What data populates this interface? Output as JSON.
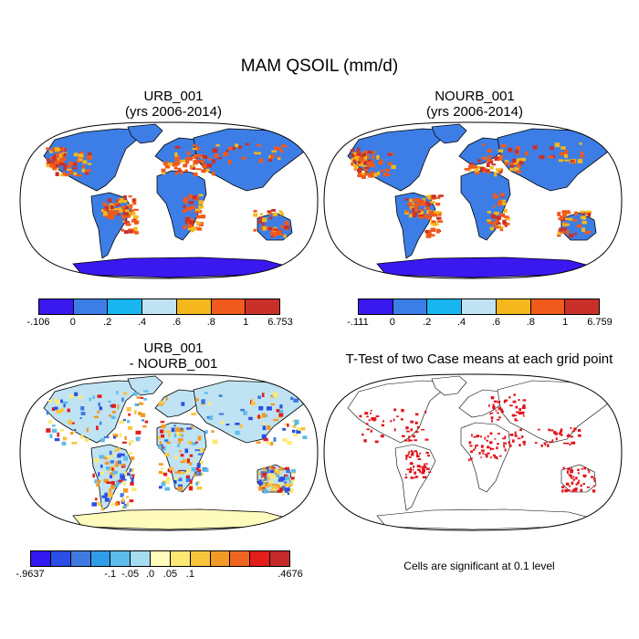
{
  "title": "MAM QSOIL (mm/d)",
  "panels": [
    {
      "id": "urb",
      "title_line1": "URB_001",
      "title_line2": "(yrs 2006-2014)"
    },
    {
      "id": "nourb",
      "title_line1": "NOURB_001",
      "title_line2": "(yrs 2006-2014)"
    },
    {
      "id": "diff",
      "title_line1": "URB_001",
      "title_line2": "- NOURB_001"
    },
    {
      "id": "ttest",
      "title_line1": "T-Test of two Case means at each grid point"
    }
  ],
  "colorbars": {
    "urb": {
      "colors": [
        "#3a18f0",
        "#3d7ee6",
        "#17b6f0",
        "#bfe3f2",
        "#f4b81c",
        "#f05a1c",
        "#c9302a"
      ],
      "labels": [
        "-.106",
        "0",
        ".2",
        ".4",
        ".6",
        ".8",
        "1",
        "6.753"
      ]
    },
    "nourb": {
      "colors": [
        "#3a18f0",
        "#3d7ee6",
        "#17b6f0",
        "#bfe3f2",
        "#f4b81c",
        "#f05a1c",
        "#c9302a"
      ],
      "labels": [
        "-.111",
        "0",
        ".2",
        ".4",
        ".6",
        ".8",
        "1",
        "6.759"
      ]
    },
    "diff": {
      "colors": [
        "#3318f0",
        "#2a4ee6",
        "#3f7ae0",
        "#2f9ce8",
        "#5cbcec",
        "#a6dcf0",
        "#fffbbd",
        "#fde874",
        "#f8c43c",
        "#f29a25",
        "#ee6621",
        "#e41c1c",
        "#c42a2a"
      ],
      "labels": [
        "-.9637",
        "-.1",
        "-.05",
        ".0",
        ".05",
        ".1",
        ".4676"
      ]
    }
  },
  "note": "Cells are significant at 0.1 level",
  "colors": {
    "land_urb": "#3d7ee6",
    "land_diff": "#bfe3f2",
    "hot": "#f05a1c",
    "hot2": "#c9302a",
    "warm": "#f4b81c",
    "antarctica": "#3a18f0",
    "sig": "#e0141c"
  }
}
